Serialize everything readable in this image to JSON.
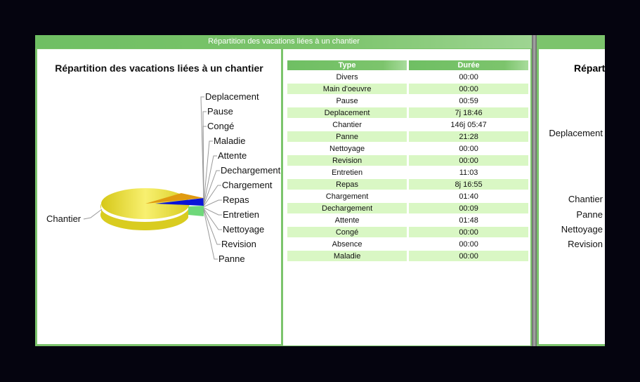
{
  "panel": {
    "header": "Répartition des vacations liées à un chantier"
  },
  "chart_data": {
    "type": "pie",
    "title": "Répartition des vacations liées à un chantier",
    "categories": [
      "Chantier",
      "Deplacement",
      "Pause",
      "Congé",
      "Maladie",
      "Attente",
      "Dechargement",
      "Chargement",
      "Repas",
      "Entretien",
      "Nettoyage",
      "Revision",
      "Panne"
    ],
    "colors": {
      "Chantier": "#e8e040",
      "Deplacement": "#e09a10",
      "Repas": "#0a14d8",
      "Panne": "#6fd87a"
    }
  },
  "table": {
    "headers": [
      "Type",
      "Durée"
    ],
    "rows": [
      [
        "Divers",
        "00:00"
      ],
      [
        "Main d'oeuvre",
        "00:00"
      ],
      [
        "Pause",
        "00:59"
      ],
      [
        "Deplacement",
        "7j 18:46"
      ],
      [
        "Chantier",
        "146j 05:47"
      ],
      [
        "Panne",
        "21:28"
      ],
      [
        "Nettoyage",
        "00:00"
      ],
      [
        "Revision",
        "00:00"
      ],
      [
        "Entretien",
        "11:03"
      ],
      [
        "Repas",
        "8j 16:55"
      ],
      [
        "Chargement",
        "01:40"
      ],
      [
        "Dechargement",
        "00:09"
      ],
      [
        "Attente",
        "01:48"
      ],
      [
        "Congé",
        "00:00"
      ],
      [
        "Absence",
        "00:00"
      ],
      [
        "Maladie",
        "00:00"
      ]
    ]
  },
  "panel2": {
    "title": "Réparti",
    "labels": [
      "Deplacement",
      "Chantier",
      "Panne",
      "Nettoyage",
      "Revision"
    ]
  }
}
